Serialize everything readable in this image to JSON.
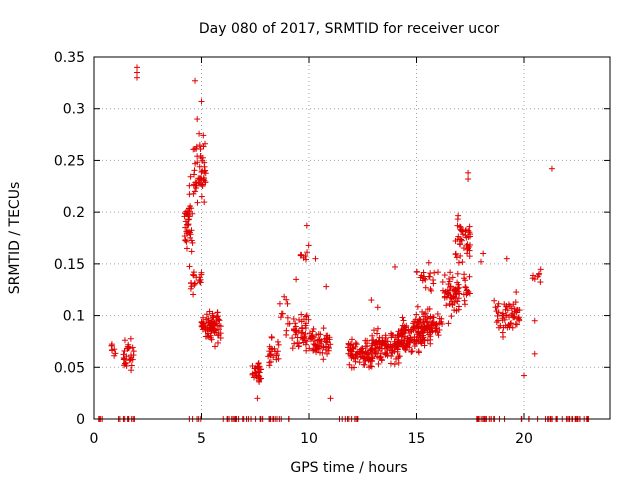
{
  "chart_data": {
    "type": "scatter",
    "title": "Day 080 of 2017, SRMTID for receiver ucor",
    "xlabel": "GPS time / hours",
    "ylabel": "SRMTID / TECUs",
    "xlim": [
      0,
      24
    ],
    "ylim": [
      0,
      0.35
    ],
    "x_ticks": [
      0,
      5,
      10,
      15,
      20
    ],
    "y_ticks": [
      0,
      0.05,
      0.1,
      0.15,
      0.2,
      0.25,
      0.3,
      0.35
    ],
    "y_tick_labels": [
      "0",
      "0.05",
      "0.1",
      "0.15",
      "0.2",
      "0.25",
      "0.3",
      "0.35"
    ],
    "grid": true,
    "marker": "+",
    "series": [
      {
        "name": "SRMTID",
        "color": "#e00000",
        "clusters": [
          {
            "x_range": [
              0.05,
              1.9
            ],
            "y_mean": 0.0,
            "y_spread": 0.0,
            "count": 14
          },
          {
            "x_range": [
              0.8,
              1.0
            ],
            "y_mean": 0.068,
            "y_spread": 0.014,
            "count": 8
          },
          {
            "x_range": [
              1.35,
              1.85
            ],
            "y_mean": 0.062,
            "y_spread": 0.018,
            "count": 30
          },
          {
            "x_range": [
              4.2,
              5.1
            ],
            "y_mean": 0.0,
            "y_spread": 0.0,
            "count": 5
          },
          {
            "x_range": [
              4.2,
              4.6
            ],
            "y_mean": 0.19,
            "y_spread": 0.05,
            "count": 45
          },
          {
            "x_range": [
              4.6,
              5.2
            ],
            "y_mean": 0.24,
            "y_spread": 0.055,
            "count": 55
          },
          {
            "x_range": [
              4.4,
              5.0
            ],
            "y_mean": 0.135,
            "y_spread": 0.02,
            "count": 20
          },
          {
            "x_range": [
              5.0,
              5.9
            ],
            "y_mean": 0.09,
            "y_spread": 0.022,
            "count": 80
          },
          {
            "x_range": [
              5.9,
              7.9
            ],
            "y_mean": 0.0,
            "y_spread": 0.0,
            "count": 22
          },
          {
            "x_range": [
              7.3,
              7.8
            ],
            "y_mean": 0.045,
            "y_spread": 0.014,
            "count": 30
          },
          {
            "x_range": [
              8.0,
              9.1
            ],
            "y_mean": 0.0,
            "y_spread": 0.0,
            "count": 12
          },
          {
            "x_range": [
              8.1,
              8.6
            ],
            "y_mean": 0.065,
            "y_spread": 0.02,
            "count": 25
          },
          {
            "x_range": [
              8.6,
              9.2
            ],
            "y_mean": 0.1,
            "y_spread": 0.025,
            "count": 12
          },
          {
            "x_range": [
              9.2,
              10.0
            ],
            "y_mean": 0.085,
            "y_spread": 0.03,
            "count": 45
          },
          {
            "x_range": [
              9.6,
              10.0
            ],
            "y_mean": 0.16,
            "y_spread": 0.015,
            "count": 8
          },
          {
            "x_range": [
              10.0,
              11.0
            ],
            "y_mean": 0.075,
            "y_spread": 0.022,
            "count": 60
          },
          {
            "x_range": [
              11.4,
              12.4
            ],
            "y_mean": 0.0,
            "y_spread": 0.0,
            "count": 10
          },
          {
            "x_range": [
              11.8,
              13.0
            ],
            "y_mean": 0.065,
            "y_spread": 0.02,
            "count": 90
          },
          {
            "x_range": [
              13.0,
              14.2
            ],
            "y_mean": 0.07,
            "y_spread": 0.022,
            "count": 100
          },
          {
            "x_range": [
              14.2,
              15.4
            ],
            "y_mean": 0.082,
            "y_spread": 0.025,
            "count": 100
          },
          {
            "x_range": [
              15.0,
              16.2
            ],
            "y_mean": 0.09,
            "y_spread": 0.022,
            "count": 80
          },
          {
            "x_range": [
              15.0,
              16.0
            ],
            "y_mean": 0.135,
            "y_spread": 0.02,
            "count": 20
          },
          {
            "x_range": [
              16.2,
              17.0
            ],
            "y_mean": 0.12,
            "y_spread": 0.03,
            "count": 60
          },
          {
            "x_range": [
              16.8,
              17.5
            ],
            "y_mean": 0.17,
            "y_spread": 0.035,
            "count": 45
          },
          {
            "x_range": [
              17.2,
              17.5
            ],
            "y_mean": 0.125,
            "y_spread": 0.02,
            "count": 15
          },
          {
            "x_range": [
              17.8,
              19.2
            ],
            "y_mean": 0.0,
            "y_spread": 0.0,
            "count": 20
          },
          {
            "x_range": [
              18.6,
              19.8
            ],
            "y_mean": 0.1,
            "y_spread": 0.025,
            "count": 60
          },
          {
            "x_range": [
              19.8,
              23.0
            ],
            "y_mean": 0.0,
            "y_spread": 0.0,
            "count": 35
          },
          {
            "x_range": [
              20.4,
              20.8
            ],
            "y_mean": 0.14,
            "y_spread": 0.012,
            "count": 8
          }
        ],
        "points": [
          [
            2.0,
            0.34
          ],
          [
            2.0,
            0.335
          ],
          [
            2.0,
            0.33
          ],
          [
            4.7,
            0.327
          ],
          [
            5.0,
            0.307
          ],
          [
            4.8,
            0.29
          ],
          [
            17.4,
            0.238
          ],
          [
            17.4,
            0.232
          ],
          [
            21.3,
            0.242
          ],
          [
            9.9,
            0.187
          ],
          [
            10.8,
            0.128
          ],
          [
            9.4,
            0.135
          ],
          [
            20.0,
            0.042
          ],
          [
            20.5,
            0.063
          ],
          [
            20.5,
            0.095
          ],
          [
            14.0,
            0.147
          ],
          [
            13.2,
            0.108
          ],
          [
            12.9,
            0.115
          ],
          [
            7.6,
            0.02
          ],
          [
            10.3,
            0.155
          ],
          [
            11.0,
            0.02
          ],
          [
            18.0,
            0.152
          ],
          [
            18.1,
            0.16
          ],
          [
            19.2,
            0.155
          ]
        ]
      }
    ]
  }
}
